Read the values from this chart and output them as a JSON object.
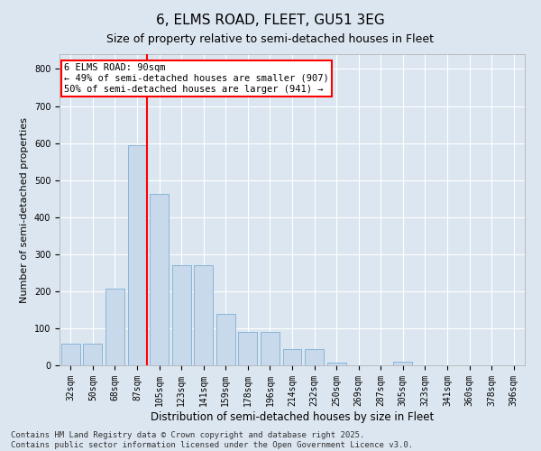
{
  "title": "6, ELMS ROAD, FLEET, GU51 3EG",
  "subtitle": "Size of property relative to semi-detached houses in Fleet",
  "xlabel": "Distribution of semi-detached houses by size in Fleet",
  "ylabel": "Number of semi-detached properties",
  "categories": [
    "32sqm",
    "50sqm",
    "68sqm",
    "87sqm",
    "105sqm",
    "123sqm",
    "141sqm",
    "159sqm",
    "178sqm",
    "196sqm",
    "214sqm",
    "232sqm",
    "250sqm",
    "269sqm",
    "287sqm",
    "305sqm",
    "323sqm",
    "341sqm",
    "360sqm",
    "378sqm",
    "396sqm"
  ],
  "values": [
    58,
    58,
    208,
    595,
    462,
    270,
    270,
    138,
    90,
    90,
    44,
    44,
    8,
    0,
    0,
    10,
    0,
    0,
    0,
    0,
    0
  ],
  "bar_color": "#c9d9ec",
  "bar_edge_color": "#7bafd4",
  "vline_color": "red",
  "vline_x": 3.43,
  "annotation_title": "6 ELMS ROAD: 90sqm",
  "annotation_line1": "← 49% of semi-detached houses are smaller (907)",
  "annotation_line2": "50% of semi-detached houses are larger (941) →",
  "annotation_box_color": "white",
  "annotation_box_edge": "red",
  "ylim": [
    0,
    840
  ],
  "yticks": [
    0,
    100,
    200,
    300,
    400,
    500,
    600,
    700,
    800
  ],
  "background_color": "#dce6f0",
  "plot_background": "#dce6f0",
  "footer": "Contains HM Land Registry data © Crown copyright and database right 2025.\nContains public sector information licensed under the Open Government Licence v3.0.",
  "title_fontsize": 11,
  "subtitle_fontsize": 9,
  "xlabel_fontsize": 8.5,
  "ylabel_fontsize": 8,
  "tick_fontsize": 7,
  "footer_fontsize": 6.5,
  "annot_fontsize": 7.5
}
